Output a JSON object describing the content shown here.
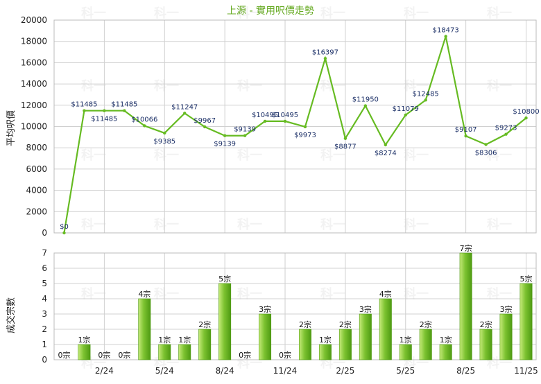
{
  "title": "上源 - 實用呎價走勢",
  "watermark": "科一",
  "colors": {
    "line": "#66bb22",
    "bar_light": "#c6ea7a",
    "bar_mid": "#7cc230",
    "bar_dark": "#4e9a12",
    "title": "#66aa22",
    "data_label": "#1a2e66"
  },
  "chart_data": [
    {
      "type": "line",
      "ylabel": "平均呎價",
      "ylim": [
        0,
        20000
      ],
      "yticks": [
        0,
        2000,
        4000,
        6000,
        8000,
        10000,
        12000,
        14000,
        16000,
        18000,
        20000
      ],
      "x_tick_labels": [
        "2/24",
        "5/24",
        "8/24",
        "11/24",
        "2/25",
        "5/25",
        "8/25",
        "11/25"
      ],
      "x_tick_positions": [
        2,
        5,
        8,
        11,
        14,
        17,
        20,
        23
      ],
      "grid": true,
      "values": [
        0,
        11485,
        11485,
        11485,
        10066,
        9385,
        11247,
        9967,
        9139,
        9139,
        10495,
        10495,
        9973,
        16397,
        8877,
        11950,
        8274,
        11079,
        12485,
        18473,
        9107,
        8306,
        9273,
        10800
      ],
      "labels": [
        "$0",
        "$11485",
        "$11485",
        "$11485",
        "$10066",
        "$9385",
        "$11247",
        "$9967",
        "$9139",
        "$9139",
        "$10495",
        "$10495",
        "$9973",
        "$16397",
        "$8877",
        "$11950",
        "$8274",
        "$11079",
        "$12485",
        "$18473",
        "$9107",
        "$8306",
        "$9273",
        "$10800"
      ]
    },
    {
      "type": "bar",
      "ylabel": "成交宗數",
      "ylim": [
        0,
        7
      ],
      "yticks": [
        0,
        1,
        2,
        3,
        4,
        5,
        6,
        7
      ],
      "values": [
        0,
        1,
        0,
        0,
        4,
        1,
        1,
        2,
        5,
        0,
        3,
        0,
        2,
        1,
        2,
        3,
        4,
        1,
        2,
        1,
        7,
        2,
        3,
        5
      ],
      "labels": [
        "0宗",
        "1宗",
        "0宗",
        "0宗",
        "4宗",
        "1宗",
        "1宗",
        "2宗",
        "5宗",
        "0宗",
        "3宗",
        "0宗",
        "2宗",
        "1宗",
        "2宗",
        "3宗",
        "4宗",
        "1宗",
        "2宗",
        "1宗",
        "7宗",
        "2宗",
        "3宗",
        "5宗"
      ]
    }
  ]
}
